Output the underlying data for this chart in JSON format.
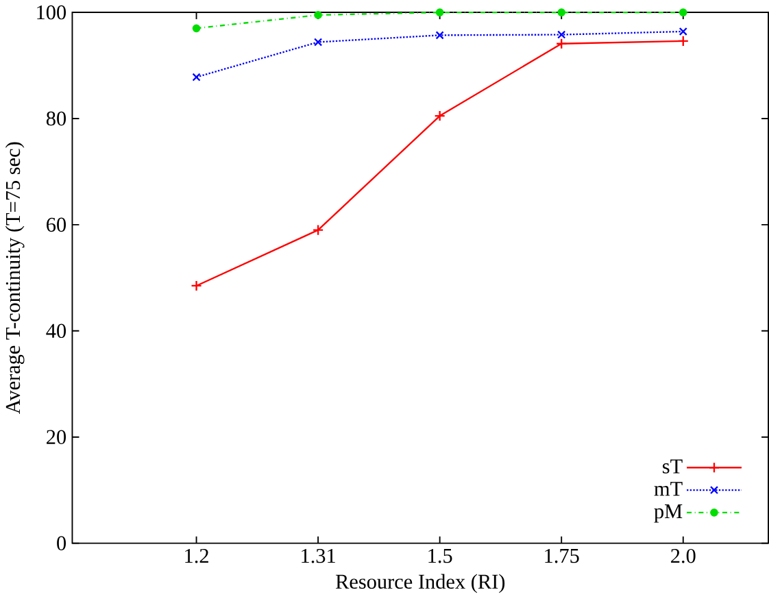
{
  "chart_data": {
    "type": "line",
    "xlabel": "Resource Index (RI)",
    "ylabel": "Average T-continuity (T=75 sec)",
    "categories": [
      "1.2",
      "1.31",
      "1.5",
      "1.75",
      "2.0"
    ],
    "series": [
      {
        "name": "sT",
        "color": "#ff0000",
        "values": [
          48.5,
          59.0,
          80.5,
          94.1,
          94.6
        ],
        "marker": "cross",
        "line_style": "solid"
      },
      {
        "name": "mT",
        "color": "#0000ff",
        "values": [
          87.8,
          94.4,
          95.7,
          95.8,
          96.4
        ],
        "marker": "x",
        "line_style": "dotted"
      },
      {
        "name": "pM",
        "color": "#00dd00",
        "values": [
          97.0,
          99.5,
          100,
          100,
          100
        ],
        "marker": "circle",
        "line_style": "dashdot"
      }
    ],
    "ylim": [
      0,
      100
    ],
    "yticks": [
      0,
      20,
      40,
      60,
      80,
      100
    ],
    "grid": false,
    "legend": "bottom right"
  }
}
